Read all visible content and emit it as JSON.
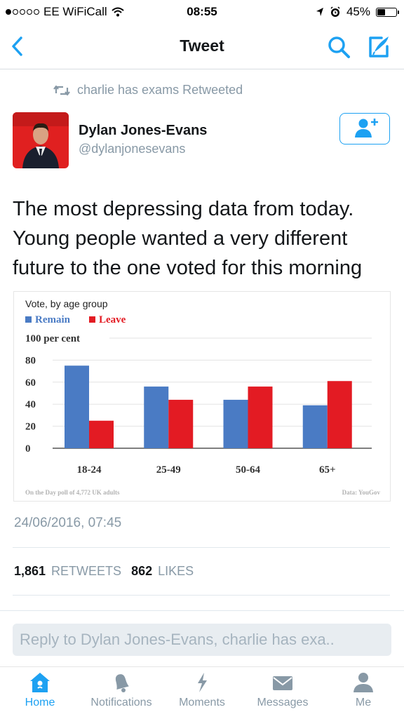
{
  "status_bar": {
    "carrier": "EE WiFiCall",
    "time": "08:55",
    "battery_text": "45%",
    "battery_level": 0.45
  },
  "nav": {
    "title": "Tweet",
    "icons": {
      "back": "chevron-left-icon",
      "search": "search-icon",
      "compose": "compose-icon"
    }
  },
  "tweet": {
    "retweeted_by": "charlie has exams Retweeted",
    "author_name": "Dylan Jones-Evans",
    "author_handle": "@dylanjonesevans",
    "text": "The most depressing data from today. Young people wanted a very different future to the one voted for this morning",
    "timestamp": "24/06/2016, 07:45",
    "retweets_count": "1,861",
    "retweets_label": "RETWEETS",
    "likes_count": "862",
    "likes_label": "LIKES"
  },
  "reply": {
    "placeholder": "Reply to Dylan Jones-Evans, charlie has exa.."
  },
  "tabs": [
    {
      "label": "Home",
      "icon": "home-icon",
      "active": true
    },
    {
      "label": "Notifications",
      "icon": "bell-icon",
      "active": false
    },
    {
      "label": "Moments",
      "icon": "lightning-icon",
      "active": false
    },
    {
      "label": "Messages",
      "icon": "envelope-icon",
      "active": false
    },
    {
      "label": "Me",
      "icon": "person-icon",
      "active": false
    }
  ],
  "colors": {
    "accent": "#1da1f2",
    "remain": "#4a7bc4",
    "leave": "#e31b23",
    "muted": "#8899a6"
  },
  "chart_data": {
    "type": "bar",
    "title": "Vote, by age group",
    "categories": [
      "18-24",
      "25-49",
      "50-64",
      "65+"
    ],
    "series": [
      {
        "name": "Remain",
        "values": [
          75,
          56,
          44,
          39
        ]
      },
      {
        "name": "Leave",
        "values": [
          25,
          44,
          56,
          61
        ]
      }
    ],
    "ylim": [
      0,
      100
    ],
    "yticks": [
      {
        "value": 100,
        "label": "100 per cent"
      },
      {
        "value": 80,
        "label": "80"
      },
      {
        "value": 60,
        "label": "60"
      },
      {
        "value": 40,
        "label": "40"
      },
      {
        "value": 20,
        "label": "20"
      },
      {
        "value": 0,
        "label": "0"
      }
    ],
    "grid": true,
    "legend": "top-left",
    "footnote_left": "On the Day poll of 4,772 UK adults",
    "footnote_right": "Data: YouGov"
  }
}
